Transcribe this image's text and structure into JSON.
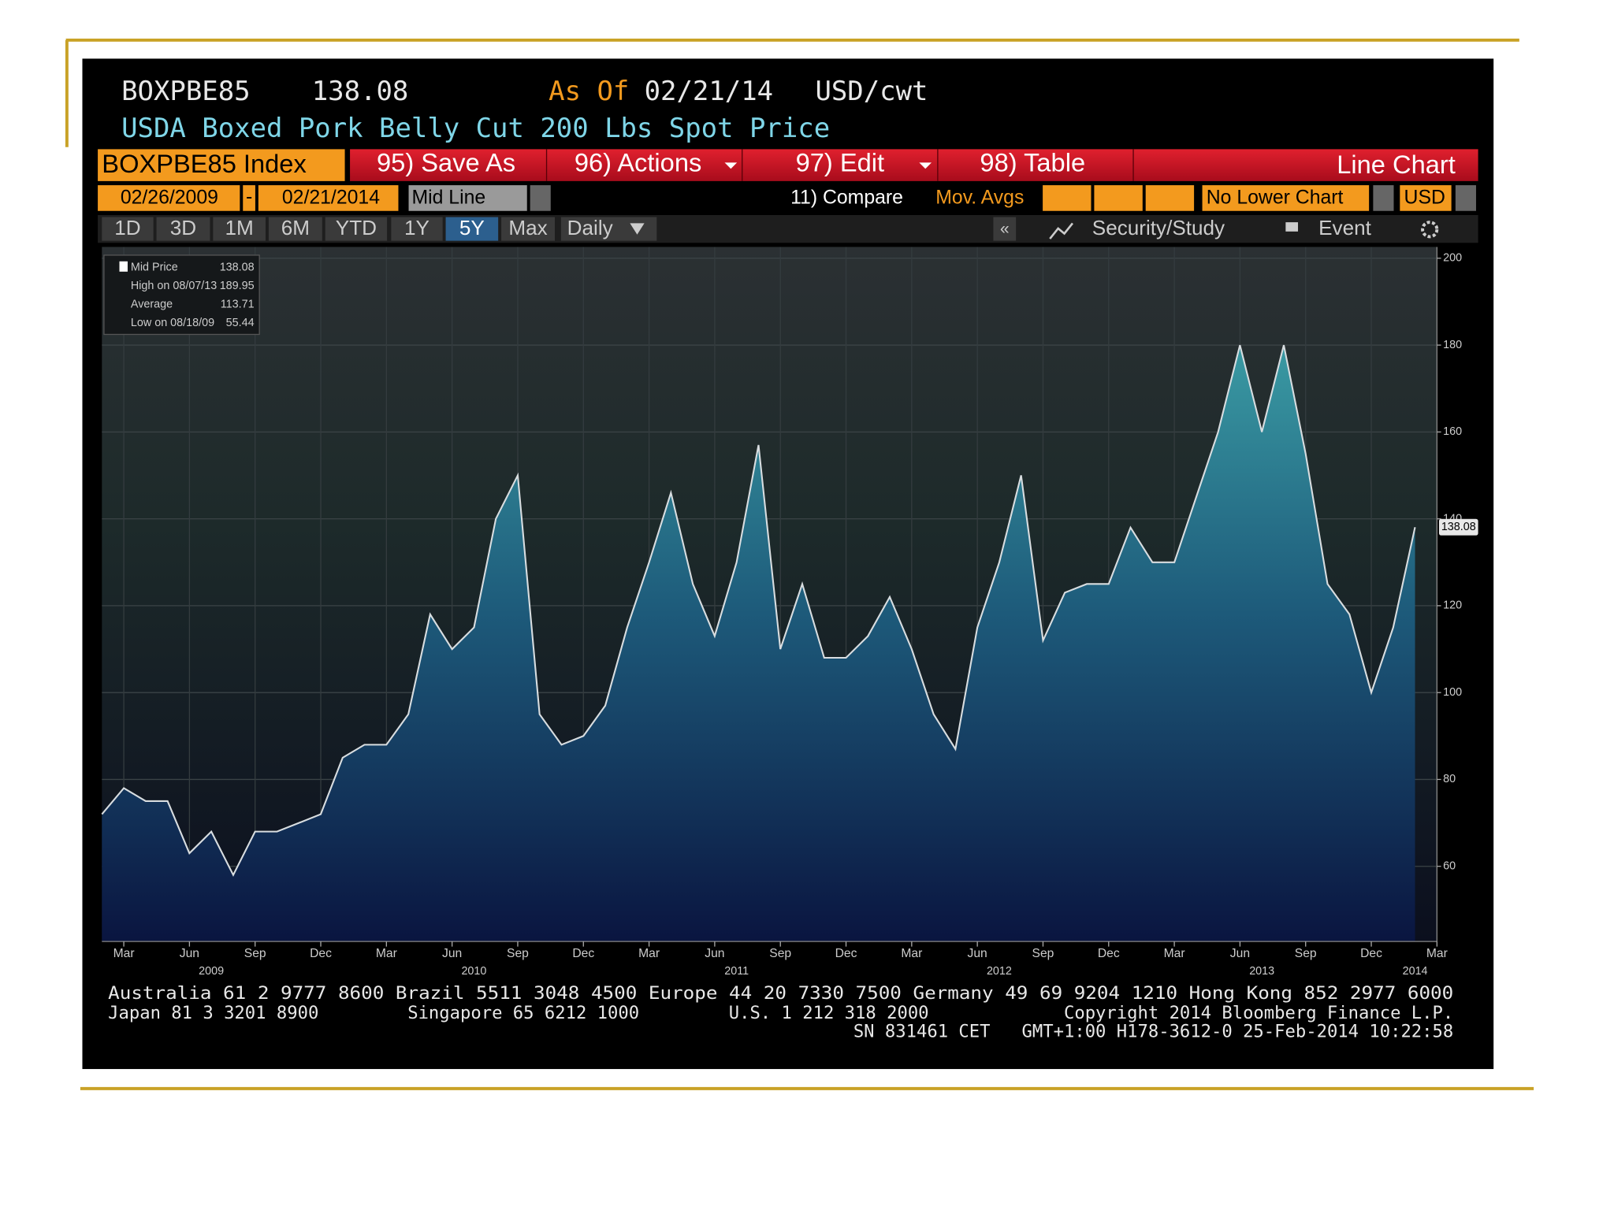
{
  "header": {
    "ticker": "BOXPBE85",
    "price": "138.08",
    "as_of_label": "As Of",
    "as_of_date": "02/21/14",
    "units": "USD/cwt",
    "description": "USDA Boxed Pork Belly Cut 200 Lbs Spot Price"
  },
  "toolbar": {
    "security": "BOXPBE85 Index",
    "buttons": [
      "95) Save As",
      "96) Actions",
      "97) Edit",
      "98) Table"
    ],
    "chart_kind": "Line Chart"
  },
  "controls": {
    "start_date": "02/26/2009",
    "dash": "-",
    "end_date": "02/21/2014",
    "line_type": "Mid Line",
    "compare": "11) Compare",
    "mov_avgs": "Mov. Avgs",
    "lower_chart": "No Lower Chart",
    "currency": "USD"
  },
  "periods": [
    "1D",
    "3D",
    "1M",
    "6M",
    "YTD",
    "1Y",
    "5Y",
    "Max"
  ],
  "frequency": "Daily",
  "collapse": "«",
  "tools": [
    "Security/Study",
    "Event"
  ],
  "legend": [
    {
      "label": "Mid Price",
      "value": "138.08"
    },
    {
      "label": "High on 08/07/13",
      "value": "189.95"
    },
    {
      "label": "Average",
      "value": "113.71"
    },
    {
      "label": "Low on 08/18/09",
      "value": "55.44"
    }
  ],
  "chart_data": {
    "type": "area",
    "color": "#d8dde0",
    "x": [
      "2009-02",
      "2009-03",
      "2009-04",
      "2009-05",
      "2009-06",
      "2009-07",
      "2009-08",
      "2009-09",
      "2009-10",
      "2009-11",
      "2009-12",
      "2010-01",
      "2010-02",
      "2010-03",
      "2010-04",
      "2010-05",
      "2010-06",
      "2010-07",
      "2010-08",
      "2010-09",
      "2010-10",
      "2010-11",
      "2010-12",
      "2011-01",
      "2011-02",
      "2011-03",
      "2011-04",
      "2011-05",
      "2011-06",
      "2011-07",
      "2011-08",
      "2011-09",
      "2011-10",
      "2011-11",
      "2011-12",
      "2012-01",
      "2012-02",
      "2012-03",
      "2012-04",
      "2012-05",
      "2012-06",
      "2012-07",
      "2012-08",
      "2012-09",
      "2012-10",
      "2012-11",
      "2012-12",
      "2013-01",
      "2013-02",
      "2013-03",
      "2013-04",
      "2013-05",
      "2013-06",
      "2013-07",
      "2013-08",
      "2013-09",
      "2013-10",
      "2013-11",
      "2013-12",
      "2014-01",
      "2014-02"
    ],
    "values": [
      72,
      78,
      75,
      75,
      63,
      68,
      58,
      68,
      68,
      70,
      72,
      85,
      88,
      88,
      95,
      118,
      110,
      115,
      140,
      150,
      95,
      88,
      90,
      97,
      115,
      130,
      146,
      125,
      113,
      130,
      157,
      110,
      125,
      108,
      108,
      113,
      122,
      110,
      95,
      87,
      115,
      130,
      150,
      112,
      123,
      125,
      125,
      138,
      130,
      130,
      145,
      160,
      180,
      160,
      180,
      155,
      125,
      118,
      100,
      115,
      138.08
    ],
    "xlim": [
      "2009-02",
      "2014-03"
    ],
    "xticks": [
      {
        "value": "2009-03",
        "label": "Mar"
      },
      {
        "value": "2009-06",
        "label": "Jun"
      },
      {
        "value": "2009-09",
        "label": "Sep"
      },
      {
        "value": "2009-12",
        "label": "Dec"
      },
      {
        "value": "2010-03",
        "label": "Mar"
      },
      {
        "value": "2010-06",
        "label": "Jun"
      },
      {
        "value": "2010-09",
        "label": "Sep"
      },
      {
        "value": "2010-12",
        "label": "Dec"
      },
      {
        "value": "2011-03",
        "label": "Mar"
      },
      {
        "value": "2011-06",
        "label": "Jun"
      },
      {
        "value": "2011-09",
        "label": "Sep"
      },
      {
        "value": "2011-12",
        "label": "Dec"
      },
      {
        "value": "2012-03",
        "label": "Mar"
      },
      {
        "value": "2012-06",
        "label": "Jun"
      },
      {
        "value": "2012-09",
        "label": "Sep"
      },
      {
        "value": "2012-12",
        "label": "Dec"
      },
      {
        "value": "2013-03",
        "label": "Mar"
      },
      {
        "value": "2013-06",
        "label": "Jun"
      },
      {
        "value": "2013-09",
        "label": "Sep"
      },
      {
        "value": "2013-12",
        "label": "Dec"
      },
      {
        "value": "2014-03",
        "label": "Mar"
      }
    ],
    "year_labels": [
      {
        "value": "2009-07",
        "label": "2009"
      },
      {
        "value": "2010-07",
        "label": "2010"
      },
      {
        "value": "2011-07",
        "label": "2011"
      },
      {
        "value": "2012-07",
        "label": "2012"
      },
      {
        "value": "2013-07",
        "label": "2013"
      },
      {
        "value": "2014-02",
        "label": "2014"
      }
    ],
    "ylim": [
      42.7,
      202.6
    ],
    "yticks": [
      60,
      80,
      100,
      120,
      140,
      160,
      180,
      200
    ],
    "grid": true
  },
  "footer": {
    "line1": "Australia 61 2 9777 8600 Brazil 5511 3048 4500 Europe 44 20 7330 7500 Germany 49 69 9204 1210 Hong Kong 852 2977 6000",
    "japan": "Japan 81 3 3201 8900",
    "singapore": "Singapore 65 6212 1000",
    "us": "U.S. 1 212 318 2000",
    "copyright": "Copyright 2014 Bloomberg Finance L.P.",
    "line3": "SN 831461 CET   GMT+1:00 H178-3612-0 25-Feb-2014 10:22:58"
  }
}
